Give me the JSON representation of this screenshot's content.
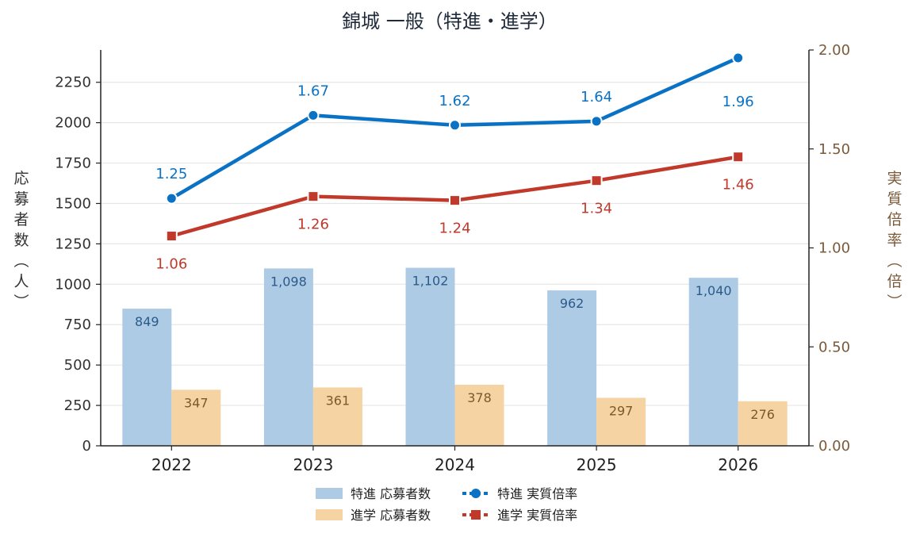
{
  "chart_data": {
    "type": "bar",
    "title": "錦城 一般（特進・進学）",
    "categories": [
      "2022",
      "2023",
      "2024",
      "2025",
      "2026"
    ],
    "y_left": {
      "label": "応募者数（人）",
      "range": [
        0,
        2450
      ],
      "ticks": [
        "0",
        "250",
        "500",
        "750",
        "1000",
        "1250",
        "1500",
        "1750",
        "2000",
        "2250"
      ]
    },
    "y_right": {
      "label": "実質倍率（倍）",
      "range": [
        0,
        2.0
      ],
      "ticks": [
        "0.00",
        "0.50",
        "1.00",
        "1.50",
        "2.00"
      ]
    },
    "grid": true,
    "legend_position": "bottom",
    "series": [
      {
        "name": "特進 応募者数",
        "type": "bar",
        "axis": "left",
        "color": "#aecbe6",
        "label_color": "#2b5a8a",
        "values": [
          849,
          1098,
          1102,
          962,
          1040
        ],
        "labels": [
          "849",
          "1,098",
          "1,102",
          "962",
          "1,040"
        ]
      },
      {
        "name": "進学 応募者数",
        "type": "bar",
        "axis": "left",
        "color": "#f6d3a2",
        "label_color": "#7a5a2a",
        "values": [
          347,
          361,
          378,
          297,
          276
        ],
        "labels": [
          "347",
          "361",
          "378",
          "297",
          "276"
        ]
      },
      {
        "name": "特進 実質倍率",
        "type": "line",
        "axis": "right",
        "color": "#0a72c5",
        "marker": "circle",
        "values": [
          1.25,
          1.67,
          1.62,
          1.64,
          1.96
        ],
        "labels": [
          "1.25",
          "1.67",
          "1.62",
          "1.64",
          "1.96"
        ]
      },
      {
        "name": "進学 実質倍率",
        "type": "line",
        "axis": "right",
        "color": "#c0392b",
        "marker": "square",
        "values": [
          1.06,
          1.26,
          1.24,
          1.34,
          1.46
        ],
        "labels": [
          "1.06",
          "1.26",
          "1.24",
          "1.34",
          "1.46"
        ]
      }
    ],
    "colors": {
      "left_axis_text": "#333333",
      "right_axis_text": "#7b5a3a",
      "title_text": "#1f2a3a",
      "grid": "#e6e6e6"
    }
  }
}
